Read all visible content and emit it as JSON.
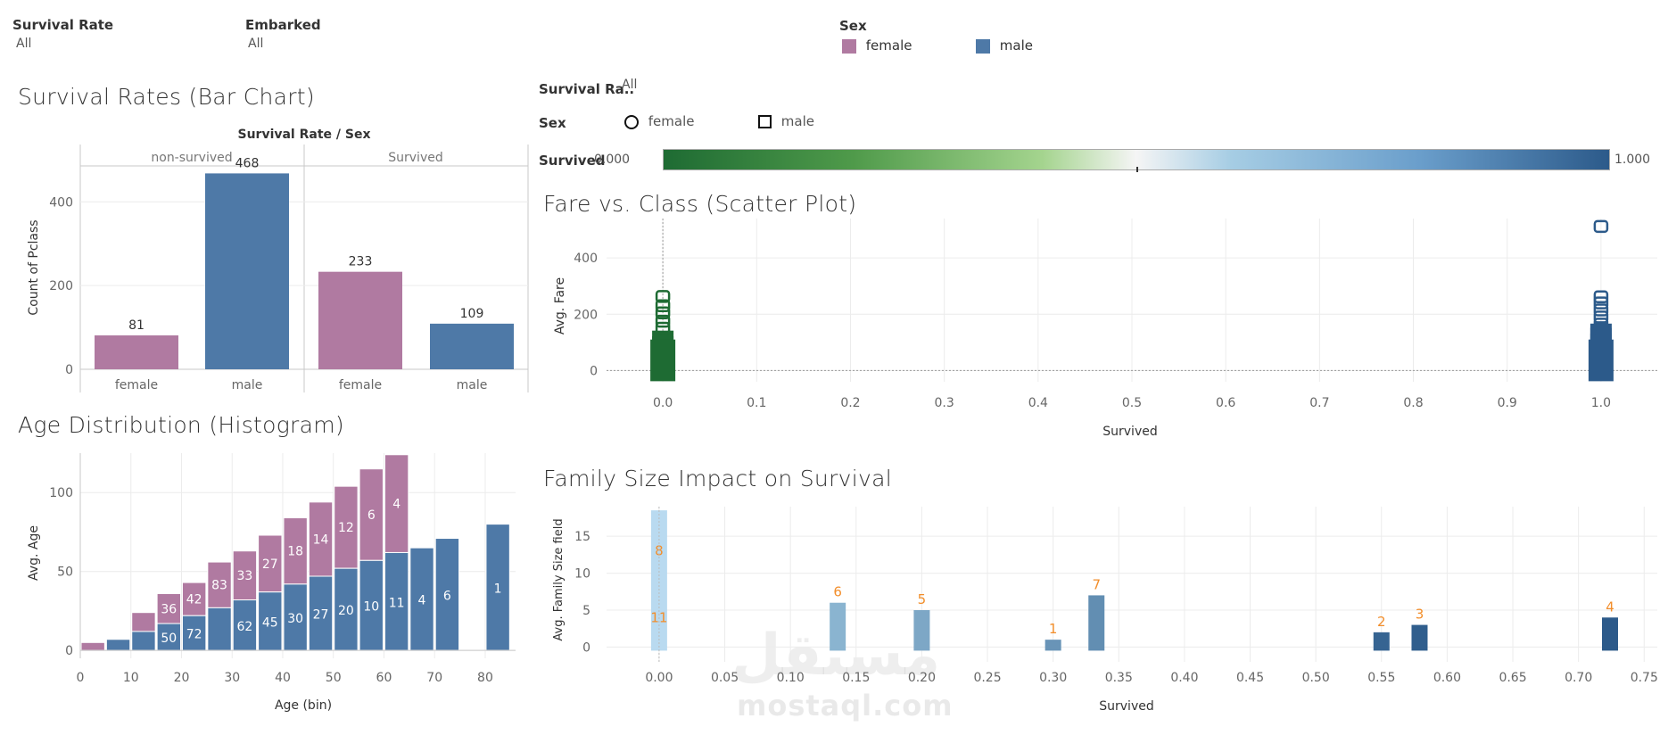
{
  "filters": {
    "survival_rate": {
      "label": "Survival Rate",
      "value": "All"
    },
    "embarked": {
      "label": "Embarked",
      "value": "All"
    },
    "sex": {
      "label": "Sex",
      "items": [
        {
          "name": "female",
          "color": "#b07aa1"
        },
        {
          "name": "male",
          "color": "#4e79a7"
        }
      ]
    }
  },
  "legend_panel": {
    "survival_label": "Survival Ra..",
    "survival_value": "All",
    "sex_label": "Sex",
    "shape_female": "female",
    "shape_male": "male",
    "survived_label": "Survived",
    "range_min": "0.000",
    "range_max": "1.000"
  },
  "chart_data": [
    {
      "type": "bar",
      "title": "Survival Rates (Bar Chart)",
      "header": "Survival Rate / Sex",
      "ylabel": "Count of Pclass",
      "panels": [
        "non-survived",
        "Survived"
      ],
      "categories": [
        "female",
        "male",
        "female",
        "male"
      ],
      "values": [
        81,
        468,
        233,
        109
      ],
      "colors": [
        "#b07aa1",
        "#4e79a7",
        "#b07aa1",
        "#4e79a7"
      ],
      "yticks": [
        0,
        200,
        400
      ],
      "ylim": [
        0,
        520
      ]
    },
    {
      "type": "scatter",
      "title": "Fare vs. Class (Scatter Plot)",
      "xlabel": "Survived",
      "ylabel": "Avg. Fare",
      "xticks": [
        "0.0",
        "0.1",
        "0.2",
        "0.3",
        "0.4",
        "0.5",
        "0.6",
        "0.7",
        "0.8",
        "0.9",
        "1.0"
      ],
      "yticks": [
        0,
        200,
        400
      ],
      "xlim": [
        -0.06,
        1.06
      ],
      "ylim": [
        -40,
        540
      ],
      "series": [
        {
          "x": 0.0,
          "fares": [
            0,
            8,
            15,
            30,
            50,
            70,
            90,
            110,
            150,
            175,
            205,
            230,
            263
          ],
          "color": "#1e6b33"
        },
        {
          "x": 1.0,
          "fares": [
            0,
            10,
            25,
            45,
            65,
            80,
            100,
            120,
            135,
            150,
            165,
            190,
            215,
            240,
            262,
            512
          ],
          "color": "#2c5a8a"
        }
      ]
    },
    {
      "type": "bar",
      "title": "Age Distribution (Histogram)",
      "xlabel": "Age (bin)",
      "ylabel": "Avg. Age",
      "xticks": [
        0,
        10,
        20,
        30,
        40,
        50,
        60,
        70,
        80
      ],
      "yticks": [
        0,
        50,
        100
      ],
      "xlim": [
        0,
        86
      ],
      "ylim": [
        -5,
        125
      ],
      "bins": [
        {
          "x": 0,
          "male": 0,
          "female": 5
        },
        {
          "x": 5,
          "male": 7,
          "female": 0
        },
        {
          "x": 10,
          "male": 12,
          "female": 12
        },
        {
          "x": 15,
          "male": 17,
          "female": 19,
          "fl": "36",
          "ml": "50"
        },
        {
          "x": 20,
          "male": 22,
          "female": 21,
          "fl": "42",
          "ml": "72"
        },
        {
          "x": 25,
          "male": 27,
          "female": 29,
          "fl": "83"
        },
        {
          "x": 30,
          "male": 32,
          "female": 31,
          "fl": "33",
          "ml": "62"
        },
        {
          "x": 35,
          "male": 37,
          "female": 36,
          "fl": "27",
          "ml": "45"
        },
        {
          "x": 40,
          "male": 42,
          "female": 42,
          "fl": "18",
          "ml": "30"
        },
        {
          "x": 45,
          "male": 47,
          "female": 47,
          "fl": "14",
          "ml": "27"
        },
        {
          "x": 50,
          "male": 52,
          "female": 52,
          "fl": "12",
          "ml": "20"
        },
        {
          "x": 55,
          "male": 57,
          "female": 58,
          "fl": "6",
          "ml": "10"
        },
        {
          "x": 60,
          "male": 62,
          "female": 62,
          "fl": "4",
          "ml": "11"
        },
        {
          "x": 65,
          "male": 65,
          "female": 0,
          "ml": "4"
        },
        {
          "x": 70,
          "male": 71,
          "female": 0,
          "ml": "6"
        },
        {
          "x": 80,
          "male": 80,
          "female": 0,
          "ml": "1"
        }
      ]
    },
    {
      "type": "bar",
      "title": "Family Size Impact on Survival",
      "xlabel": "Survived",
      "ylabel": "Avg. Family Size field",
      "xticks": [
        "0.00",
        "0.05",
        "0.10",
        "0.15",
        "0.20",
        "0.25",
        "0.30",
        "0.35",
        "0.40",
        "0.45",
        "0.50",
        "0.55",
        "0.60",
        "0.65",
        "0.70",
        "0.75"
      ],
      "yticks": [
        0,
        5,
        10,
        15
      ],
      "xlim": [
        -0.04,
        0.76
      ],
      "ylim": [
        -2,
        19
      ],
      "bars": [
        {
          "x": 0.0,
          "value": 18.5,
          "label": "11",
          "label_y": 4,
          "label2": "8",
          "label2_y": 13
        },
        {
          "x": 0.136,
          "value": 6,
          "label": "6"
        },
        {
          "x": 0.2,
          "value": 5,
          "label": "5"
        },
        {
          "x": 0.3,
          "value": 1,
          "label": "1"
        },
        {
          "x": 0.333,
          "value": 7,
          "label": "7"
        },
        {
          "x": 0.55,
          "value": 2,
          "label": "2"
        },
        {
          "x": 0.579,
          "value": 3,
          "label": "3"
        },
        {
          "x": 0.724,
          "value": 4,
          "label": "4"
        }
      ]
    }
  ],
  "watermark": {
    "arabic": "مستقل",
    "latin": "mostaql.com"
  }
}
